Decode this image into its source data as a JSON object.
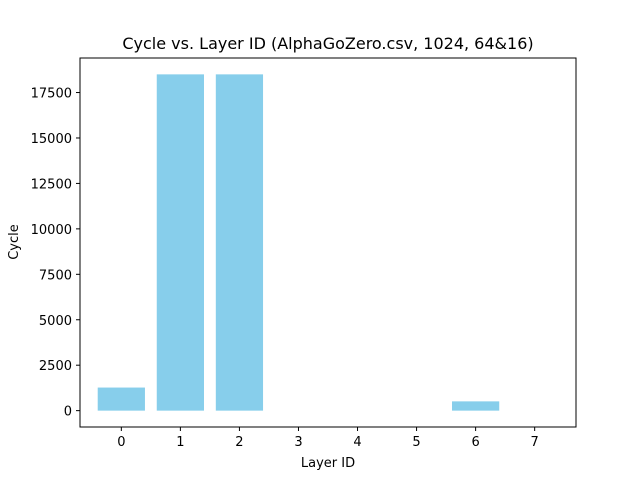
{
  "chart_data": {
    "type": "bar",
    "title": "Cycle vs. Layer ID (AlphaGoZero.csv, 1024, 64&16)",
    "xlabel": "Layer ID",
    "ylabel": "Cycle",
    "categories": [
      "0",
      "1",
      "2",
      "3",
      "4",
      "5",
      "6",
      "7"
    ],
    "values": [
      1270,
      18500,
      18500,
      0,
      0,
      0,
      510,
      0
    ],
    "ylim": [
      -900,
      19400
    ],
    "yticks": [
      0,
      2500,
      5000,
      7500,
      10000,
      12500,
      15000,
      17500
    ],
    "ytick_labels": [
      "0",
      "2500",
      "5000",
      "7500",
      "10000",
      "12500",
      "15000",
      "17500"
    ],
    "grid": false,
    "bar_color": "#87ceeb"
  }
}
